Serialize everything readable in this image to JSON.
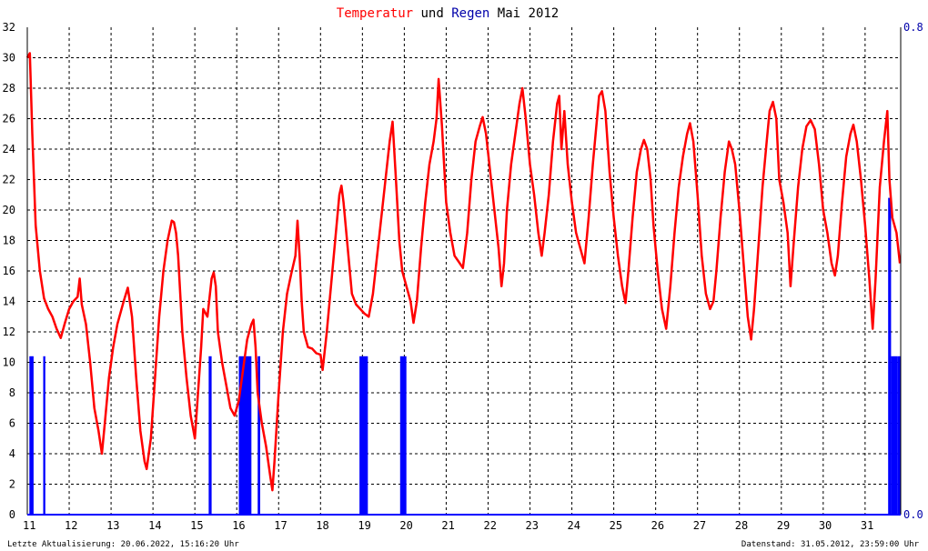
{
  "title": {
    "part1": "Temperatur",
    "part2": " und ",
    "part3": "Regen",
    "part4": " Mai 2012"
  },
  "colors": {
    "temperature": "#ff0000",
    "rain": "#0000ff",
    "grid": "#000000",
    "text": "#000000"
  },
  "footer": {
    "left": "Letzte Aktualisierung: 20.06.2022, 15:16:20 Uhr",
    "right": "Datenstand: 31.05.2012, 23:59:00 Uhr"
  },
  "chart_data": {
    "type": "line",
    "title": "Temperatur und Regen Mai 2012",
    "grid": true,
    "x_range": [
      11,
      31.85
    ],
    "x_ticks": [
      "11",
      "12",
      "13",
      "14",
      "15",
      "16",
      "17",
      "18",
      "19",
      "20",
      "21",
      "22",
      "23",
      "24",
      "25",
      "26",
      "27",
      "28",
      "29",
      "30",
      "31"
    ],
    "y_left": {
      "range": [
        0,
        32
      ],
      "ticks": [
        "0",
        "2",
        "4",
        "6",
        "8",
        "10",
        "12",
        "14",
        "16",
        "18",
        "20",
        "22",
        "24",
        "26",
        "28",
        "30",
        "32"
      ]
    },
    "y_right": {
      "range": [
        0,
        0.8
      ],
      "ticks": [
        "0.0",
        "0.8"
      ]
    },
    "series": [
      {
        "name": "Temperatur",
        "axis": "left",
        "points": [
          [
            11.0,
            30.0
          ],
          [
            11.06,
            30.3
          ],
          [
            11.12,
            25.0
          ],
          [
            11.2,
            19.0
          ],
          [
            11.3,
            16.0
          ],
          [
            11.4,
            14.2
          ],
          [
            11.5,
            13.5
          ],
          [
            11.6,
            13.0
          ],
          [
            11.7,
            12.2
          ],
          [
            11.8,
            11.6
          ],
          [
            11.9,
            12.6
          ],
          [
            12.0,
            13.5
          ],
          [
            12.1,
            14.0
          ],
          [
            12.2,
            14.3
          ],
          [
            12.25,
            15.5
          ],
          [
            12.3,
            13.8
          ],
          [
            12.4,
            12.5
          ],
          [
            12.5,
            10.0
          ],
          [
            12.6,
            7.0
          ],
          [
            12.7,
            5.5
          ],
          [
            12.78,
            4.0
          ],
          [
            12.85,
            6.0
          ],
          [
            12.95,
            9.0
          ],
          [
            13.05,
            11.0
          ],
          [
            13.15,
            12.5
          ],
          [
            13.3,
            14.0
          ],
          [
            13.4,
            14.9
          ],
          [
            13.5,
            13.0
          ],
          [
            13.6,
            9.0
          ],
          [
            13.7,
            5.5
          ],
          [
            13.8,
            3.5
          ],
          [
            13.85,
            3.0
          ],
          [
            13.95,
            5.0
          ],
          [
            14.05,
            9.0
          ],
          [
            14.15,
            13.0
          ],
          [
            14.25,
            16.0
          ],
          [
            14.35,
            18.0
          ],
          [
            14.45,
            19.3
          ],
          [
            14.5,
            19.2
          ],
          [
            14.55,
            18.5
          ],
          [
            14.6,
            17.0
          ],
          [
            14.65,
            14.5
          ],
          [
            14.7,
            12.0
          ],
          [
            14.8,
            9.0
          ],
          [
            14.9,
            6.5
          ],
          [
            15.0,
            5.0
          ],
          [
            15.05,
            7.0
          ],
          [
            15.15,
            11.0
          ],
          [
            15.2,
            13.5
          ],
          [
            15.3,
            13.0
          ],
          [
            15.4,
            15.5
          ],
          [
            15.45,
            15.9
          ],
          [
            15.5,
            15.0
          ],
          [
            15.55,
            12.0
          ],
          [
            15.65,
            10.0
          ],
          [
            15.75,
            8.5
          ],
          [
            15.85,
            7.0
          ],
          [
            15.95,
            6.5
          ],
          [
            16.05,
            7.5
          ],
          [
            16.15,
            9.5
          ],
          [
            16.25,
            11.5
          ],
          [
            16.35,
            12.5
          ],
          [
            16.4,
            12.8
          ],
          [
            16.45,
            11.0
          ],
          [
            16.5,
            8.0
          ],
          [
            16.6,
            6.0
          ],
          [
            16.7,
            4.5
          ],
          [
            16.8,
            2.5
          ],
          [
            16.85,
            1.6
          ],
          [
            16.9,
            3.5
          ],
          [
            17.0,
            8.0
          ],
          [
            17.1,
            12.0
          ],
          [
            17.2,
            14.5
          ],
          [
            17.3,
            15.8
          ],
          [
            17.4,
            17.0
          ],
          [
            17.45,
            19.3
          ],
          [
            17.5,
            17.0
          ],
          [
            17.55,
            14.0
          ],
          [
            17.6,
            12.0
          ],
          [
            17.7,
            11.0
          ],
          [
            17.8,
            10.9
          ],
          [
            17.9,
            10.6
          ],
          [
            18.0,
            10.5
          ],
          [
            18.05,
            9.5
          ],
          [
            18.15,
            12.0
          ],
          [
            18.25,
            15.0
          ],
          [
            18.35,
            18.0
          ],
          [
            18.45,
            21.0
          ],
          [
            18.5,
            21.6
          ],
          [
            18.55,
            20.5
          ],
          [
            18.65,
            17.5
          ],
          [
            18.75,
            14.5
          ],
          [
            18.85,
            13.8
          ],
          [
            18.95,
            13.5
          ],
          [
            19.05,
            13.2
          ],
          [
            19.15,
            13.0
          ],
          [
            19.25,
            14.5
          ],
          [
            19.35,
            17.0
          ],
          [
            19.45,
            19.5
          ],
          [
            19.55,
            22.0
          ],
          [
            19.65,
            24.5
          ],
          [
            19.72,
            25.8
          ],
          [
            19.8,
            22.0
          ],
          [
            19.88,
            18.0
          ],
          [
            19.95,
            16.0
          ],
          [
            20.05,
            15.0
          ],
          [
            20.15,
            14.0
          ],
          [
            20.22,
            12.6
          ],
          [
            20.3,
            14.0
          ],
          [
            20.4,
            17.5
          ],
          [
            20.5,
            20.5
          ],
          [
            20.6,
            23.0
          ],
          [
            20.7,
            24.5
          ],
          [
            20.77,
            26.0
          ],
          [
            20.82,
            28.6
          ],
          [
            20.9,
            25.5
          ],
          [
            21.0,
            20.5
          ],
          [
            21.1,
            18.5
          ],
          [
            21.2,
            17.0
          ],
          [
            21.3,
            16.6
          ],
          [
            21.4,
            16.2
          ],
          [
            21.5,
            18.5
          ],
          [
            21.6,
            22.0
          ],
          [
            21.7,
            24.5
          ],
          [
            21.8,
            25.5
          ],
          [
            21.87,
            26.1
          ],
          [
            21.95,
            25.0
          ],
          [
            22.05,
            22.5
          ],
          [
            22.15,
            20.0
          ],
          [
            22.25,
            17.5
          ],
          [
            22.32,
            15.0
          ],
          [
            22.38,
            16.5
          ],
          [
            22.45,
            20.0
          ],
          [
            22.55,
            23.0
          ],
          [
            22.65,
            25.0
          ],
          [
            22.75,
            27.0
          ],
          [
            22.82,
            28.0
          ],
          [
            22.9,
            26.0
          ],
          [
            23.0,
            23.0
          ],
          [
            23.1,
            21.0
          ],
          [
            23.2,
            18.5
          ],
          [
            23.28,
            17.0
          ],
          [
            23.35,
            18.5
          ],
          [
            23.45,
            21.0
          ],
          [
            23.55,
            24.5
          ],
          [
            23.65,
            27.0
          ],
          [
            23.7,
            27.5
          ],
          [
            23.75,
            24.0
          ],
          [
            23.82,
            26.5
          ],
          [
            23.9,
            23.0
          ],
          [
            24.0,
            20.5
          ],
          [
            24.1,
            18.5
          ],
          [
            24.2,
            17.5
          ],
          [
            24.3,
            16.5
          ],
          [
            24.4,
            19.5
          ],
          [
            24.5,
            23.0
          ],
          [
            24.6,
            26.0
          ],
          [
            24.65,
            27.5
          ],
          [
            24.72,
            27.8
          ],
          [
            24.8,
            26.5
          ],
          [
            24.9,
            22.5
          ],
          [
            25.0,
            19.5
          ],
          [
            25.1,
            17.0
          ],
          [
            25.2,
            15.0
          ],
          [
            25.28,
            13.9
          ],
          [
            25.35,
            16.0
          ],
          [
            25.45,
            19.5
          ],
          [
            25.55,
            22.5
          ],
          [
            25.65,
            24.0
          ],
          [
            25.72,
            24.6
          ],
          [
            25.8,
            24.0
          ],
          [
            25.88,
            22.0
          ],
          [
            25.95,
            19.0
          ],
          [
            26.05,
            16.0
          ],
          [
            26.15,
            13.5
          ],
          [
            26.25,
            12.2
          ],
          [
            26.35,
            15.0
          ],
          [
            26.45,
            18.5
          ],
          [
            26.55,
            21.5
          ],
          [
            26.65,
            23.5
          ],
          [
            26.75,
            25.0
          ],
          [
            26.82,
            25.7
          ],
          [
            26.9,
            24.5
          ],
          [
            27.0,
            21.0
          ],
          [
            27.1,
            17.0
          ],
          [
            27.2,
            14.5
          ],
          [
            27.3,
            13.5
          ],
          [
            27.38,
            14.0
          ],
          [
            27.45,
            16.0
          ],
          [
            27.55,
            19.5
          ],
          [
            27.65,
            22.5
          ],
          [
            27.75,
            24.5
          ],
          [
            27.82,
            24.0
          ],
          [
            27.9,
            23.0
          ],
          [
            28.0,
            20.0
          ],
          [
            28.1,
            16.5
          ],
          [
            28.2,
            13.0
          ],
          [
            28.28,
            11.5
          ],
          [
            28.35,
            13.5
          ],
          [
            28.45,
            17.5
          ],
          [
            28.55,
            21.5
          ],
          [
            28.65,
            24.5
          ],
          [
            28.72,
            26.5
          ],
          [
            28.8,
            27.1
          ],
          [
            28.88,
            26.0
          ],
          [
            28.95,
            22.0
          ],
          [
            29.05,
            20.5
          ],
          [
            29.15,
            18.5
          ],
          [
            29.22,
            15.0
          ],
          [
            29.3,
            18.0
          ],
          [
            29.4,
            21.5
          ],
          [
            29.5,
            24.0
          ],
          [
            29.6,
            25.5
          ],
          [
            29.7,
            25.9
          ],
          [
            29.8,
            25.3
          ],
          [
            29.9,
            23.0
          ],
          [
            30.0,
            20.0
          ],
          [
            30.1,
            18.5
          ],
          [
            30.2,
            16.5
          ],
          [
            30.28,
            15.7
          ],
          [
            30.35,
            17.0
          ],
          [
            30.45,
            20.5
          ],
          [
            30.55,
            23.5
          ],
          [
            30.65,
            25.0
          ],
          [
            30.72,
            25.6
          ],
          [
            30.8,
            24.5
          ],
          [
            30.9,
            22.0
          ],
          [
            31.0,
            19.0
          ],
          [
            31.1,
            15.5
          ],
          [
            31.18,
            12.2
          ],
          [
            31.25,
            15.5
          ],
          [
            31.35,
            21.5
          ],
          [
            31.45,
            24.5
          ],
          [
            31.53,
            26.5
          ],
          [
            31.58,
            22.0
          ],
          [
            31.65,
            19.5
          ],
          [
            31.75,
            18.5
          ],
          [
            31.83,
            16.5
          ]
        ]
      },
      {
        "name": "Regen",
        "axis": "right",
        "bars": [
          [
            11.05,
            11.15,
            0.26
          ],
          [
            11.38,
            11.43,
            0.26
          ],
          [
            15.33,
            15.4,
            0.26
          ],
          [
            16.05,
            16.35,
            0.26
          ],
          [
            16.5,
            16.56,
            0.26
          ],
          [
            18.93,
            19.13,
            0.26
          ],
          [
            19.9,
            20.05,
            0.26
          ],
          [
            31.55,
            31.62,
            0.52
          ],
          [
            31.62,
            31.78,
            0.26
          ],
          [
            31.78,
            31.85,
            0.26
          ]
        ]
      }
    ]
  }
}
